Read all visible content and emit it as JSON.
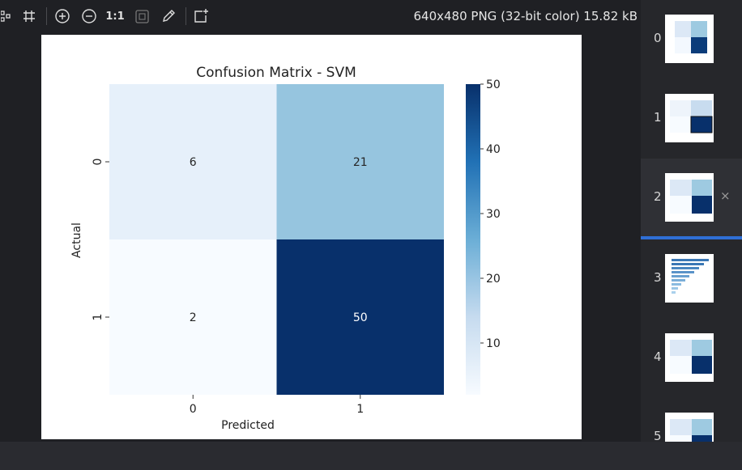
{
  "toolbar": {
    "zoom_actual_label": "1:1",
    "image_info": "640x480 PNG (32-bit color) 15.82 kB",
    "icons": [
      "nodes-icon",
      "crop-icon",
      "zoom-in-icon",
      "zoom-out-icon",
      "fit-icon",
      "eyedropper-icon",
      "add-frame-icon"
    ]
  },
  "thumbnails": [
    {
      "index": "0"
    },
    {
      "index": "1"
    },
    {
      "index": "2",
      "close": "×"
    },
    {
      "index": "3"
    },
    {
      "index": "4"
    },
    {
      "index": "5"
    }
  ],
  "colors": {
    "accent": "#2f6fd6",
    "heat_low": "#f7fbff",
    "heat_high": "#08306b"
  },
  "chart_data": {
    "type": "heatmap",
    "title": "Confusion Matrix - SVM",
    "xlabel": "Predicted",
    "ylabel": "Actual",
    "x_categories": [
      "0",
      "1"
    ],
    "y_categories": [
      "0",
      "1"
    ],
    "values": [
      [
        6,
        21
      ],
      [
        2,
        50
      ]
    ],
    "colorbar": {
      "range": [
        2,
        50
      ],
      "ticks": [
        "10",
        "20",
        "30",
        "40",
        "50"
      ],
      "tick_values": [
        10,
        20,
        30,
        40,
        50
      ]
    },
    "colormap": "Blues"
  }
}
